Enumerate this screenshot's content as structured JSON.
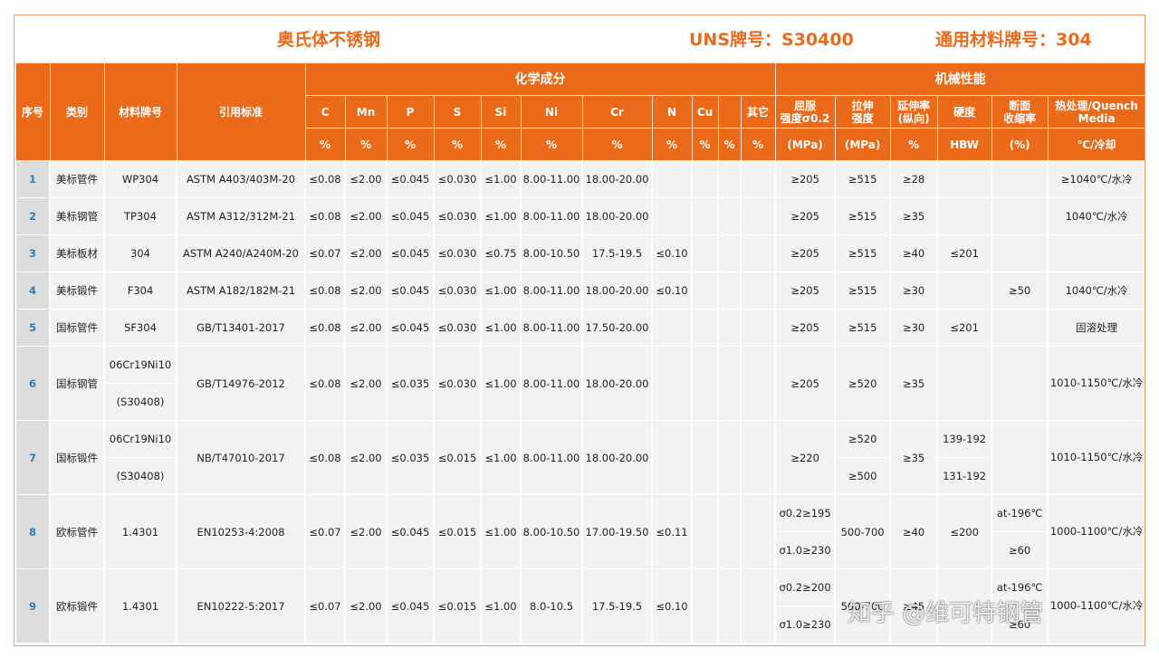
{
  "title": {
    "name": "奥氏体不锈钢",
    "uns": "UNS牌号：S30400",
    "general": "通用材料牌号：304"
  },
  "header": {
    "seq": "序号",
    "category": "类别",
    "grade": "材料牌号",
    "standard": "引用标准",
    "chem_group": "化学成分",
    "mech_group": "机械性能",
    "elements": [
      "C",
      "Mn",
      "P",
      "S",
      "Si",
      "Ni",
      "Cr",
      "N",
      "Cu",
      "",
      "其它"
    ],
    "elem_units": [
      "%",
      "%",
      "%",
      "%",
      "%",
      "%",
      "%",
      "%",
      "%",
      "%",
      "%"
    ],
    "yield_1": "屈服",
    "yield_2": "强度σ0.2",
    "tensile_1": "拉伸",
    "tensile_2": "强度",
    "elong_1": "延伸率",
    "elong_2": "(纵向)",
    "hardness": "硬度",
    "reduction_1": "断面",
    "reduction_2": "收缩率",
    "heat_1": "热处理/Quench",
    "heat_2": "Media",
    "units": {
      "yield": "(MPa)",
      "tensile": "(MPa)",
      "elong": "%",
      "hardness": "HBW",
      "reduction": "(%)",
      "heat": "℃/冷却"
    }
  },
  "rows": [
    {
      "seq": "1",
      "category": "美标管件",
      "grade": [
        "WP304"
      ],
      "standard": "ASTM A403/403M-20",
      "c": "≤0.08",
      "mn": "≤2.00",
      "p": "≤0.045",
      "s": "≤0.030",
      "si": "≤1.00",
      "ni": "8.00-11.00",
      "cr": "18.00-20.00",
      "n": "",
      "yield": [
        "≥205"
      ],
      "tensile": [
        "≥515"
      ],
      "elong": "≥28",
      "hardness": [
        ""
      ],
      "reduction": [
        ""
      ],
      "heat": "≥1040℃/水冷"
    },
    {
      "seq": "2",
      "category": "美标钢管",
      "grade": [
        "TP304"
      ],
      "standard": "ASTM A312/312M-21",
      "c": "≤0.08",
      "mn": "≤2.00",
      "p": "≤0.045",
      "s": "≤0.030",
      "si": "≤1.00",
      "ni": "8.00-11.00",
      "cr": "18.00-20.00",
      "n": "",
      "yield": [
        "≥205"
      ],
      "tensile": [
        "≥515"
      ],
      "elong": "≥35",
      "hardness": [
        ""
      ],
      "reduction": [
        ""
      ],
      "heat": "1040℃/水冷"
    },
    {
      "seq": "3",
      "category": "美标板材",
      "grade": [
        "304"
      ],
      "standard": "ASTM A240/A240M-20",
      "c": "≤0.07",
      "mn": "≤2.00",
      "p": "≤0.045",
      "s": "≤0.030",
      "si": "≤0.75",
      "ni": "8.00-10.50",
      "cr": "17.5-19.5",
      "n": "≤0.10",
      "yield": [
        "≥205"
      ],
      "tensile": [
        "≥515"
      ],
      "elong": "≥40",
      "hardness": [
        "≤201"
      ],
      "reduction": [
        ""
      ],
      "heat": ""
    },
    {
      "seq": "4",
      "category": "美标锻件",
      "grade": [
        "F304"
      ],
      "standard": "ASTM A182/182M-21",
      "c": "≤0.08",
      "mn": "≤2.00",
      "p": "≤0.045",
      "s": "≤0.030",
      "si": "≤1.00",
      "ni": "8.00-11.00",
      "cr": "18.00-20.00",
      "n": "≤0.10",
      "yield": [
        "≥205"
      ],
      "tensile": [
        "≥515"
      ],
      "elong": "≥30",
      "hardness": [
        ""
      ],
      "reduction": [
        "≥50"
      ],
      "heat": "1040℃/水冷"
    },
    {
      "seq": "5",
      "category": "国标管件",
      "grade": [
        "SF304"
      ],
      "standard": "GB/T13401-2017",
      "c": "≤0.08",
      "mn": "≤2.00",
      "p": "≤0.045",
      "s": "≤0.030",
      "si": "≤1.00",
      "ni": "8.00-11.00",
      "cr": "17.50-20.00",
      "n": "",
      "yield": [
        "≥205"
      ],
      "tensile": [
        "≥515"
      ],
      "elong": "≥30",
      "hardness": [
        "≤201"
      ],
      "reduction": [
        ""
      ],
      "heat": "固溶处理"
    },
    {
      "seq": "6",
      "category": "国标钢管",
      "grade": [
        "06Cr19Ni10",
        "(S30408)"
      ],
      "standard": "GB/T14976-2012",
      "c": "≤0.08",
      "mn": "≤2.00",
      "p": "≤0.035",
      "s": "≤0.030",
      "si": "≤1.00",
      "ni": "8.00-11.00",
      "cr": "18.00-20.00",
      "n": "",
      "yield": [
        "≥205"
      ],
      "tensile": [
        "≥520"
      ],
      "elong": "≥35",
      "hardness": [
        ""
      ],
      "reduction": [
        ""
      ],
      "heat": "1010-1150℃/水冷"
    },
    {
      "seq": "7",
      "category": "国标锻件",
      "grade": [
        "06Cr19Ni10",
        "(S30408)"
      ],
      "standard": "NB/T47010-2017",
      "c": "≤0.08",
      "mn": "≤2.00",
      "p": "≤0.035",
      "s": "≤0.015",
      "si": "≤1.00",
      "ni": "8.00-11.00",
      "cr": "18.00-20.00",
      "n": "",
      "yield": [
        "≥220"
      ],
      "tensile": [
        "≥520",
        "≥500"
      ],
      "elong": "≥35",
      "hardness": [
        "139-192",
        "131-192"
      ],
      "reduction": [
        ""
      ],
      "heat": "1010-1150℃/水冷"
    },
    {
      "seq": "8",
      "category": "欧标管件",
      "grade": [
        "1.4301"
      ],
      "standard": "EN10253-4:2008",
      "c": "≤0.07",
      "mn": "≤2.00",
      "p": "≤0.045",
      "s": "≤0.015",
      "si": "≤1.00",
      "ni": "8.00-10.50",
      "cr": "17.00-19.50",
      "n": "≤0.11",
      "yield": [
        "σ0.2≥195",
        "σ1.0≥230"
      ],
      "tensile": [
        "500-700"
      ],
      "elong": "≥40",
      "hardness": [
        "≤200"
      ],
      "reduction": [
        "at-196℃",
        "≥60"
      ],
      "heat": "1000-1100℃/水冷"
    },
    {
      "seq": "9",
      "category": "欧标锻件",
      "grade": [
        "1.4301"
      ],
      "standard": "EN10222-5:2017",
      "c": "≤0.07",
      "mn": "≤2.00",
      "p": "≤0.045",
      "s": "≤0.015",
      "si": "≤1.00",
      "ni": "8.0-10.5",
      "cr": "17.5-19.5",
      "n": "≤0.10",
      "yield": [
        "σ0.2≥200",
        "σ1.0≥230"
      ],
      "tensile": [
        "500-700"
      ],
      "elong": "≥45",
      "hardness": [
        ""
      ],
      "reduction": [
        "at-196℃",
        "≥60"
      ],
      "heat": "1000-1100℃/水冷"
    }
  ],
  "watermark": "知乎 @维可特钢管",
  "colors": {
    "accent": "#ea6a1a",
    "row_bg": "#f2f2f2",
    "seq_bg": "#dcdcdc",
    "seq_text": "#2f7fb3"
  }
}
